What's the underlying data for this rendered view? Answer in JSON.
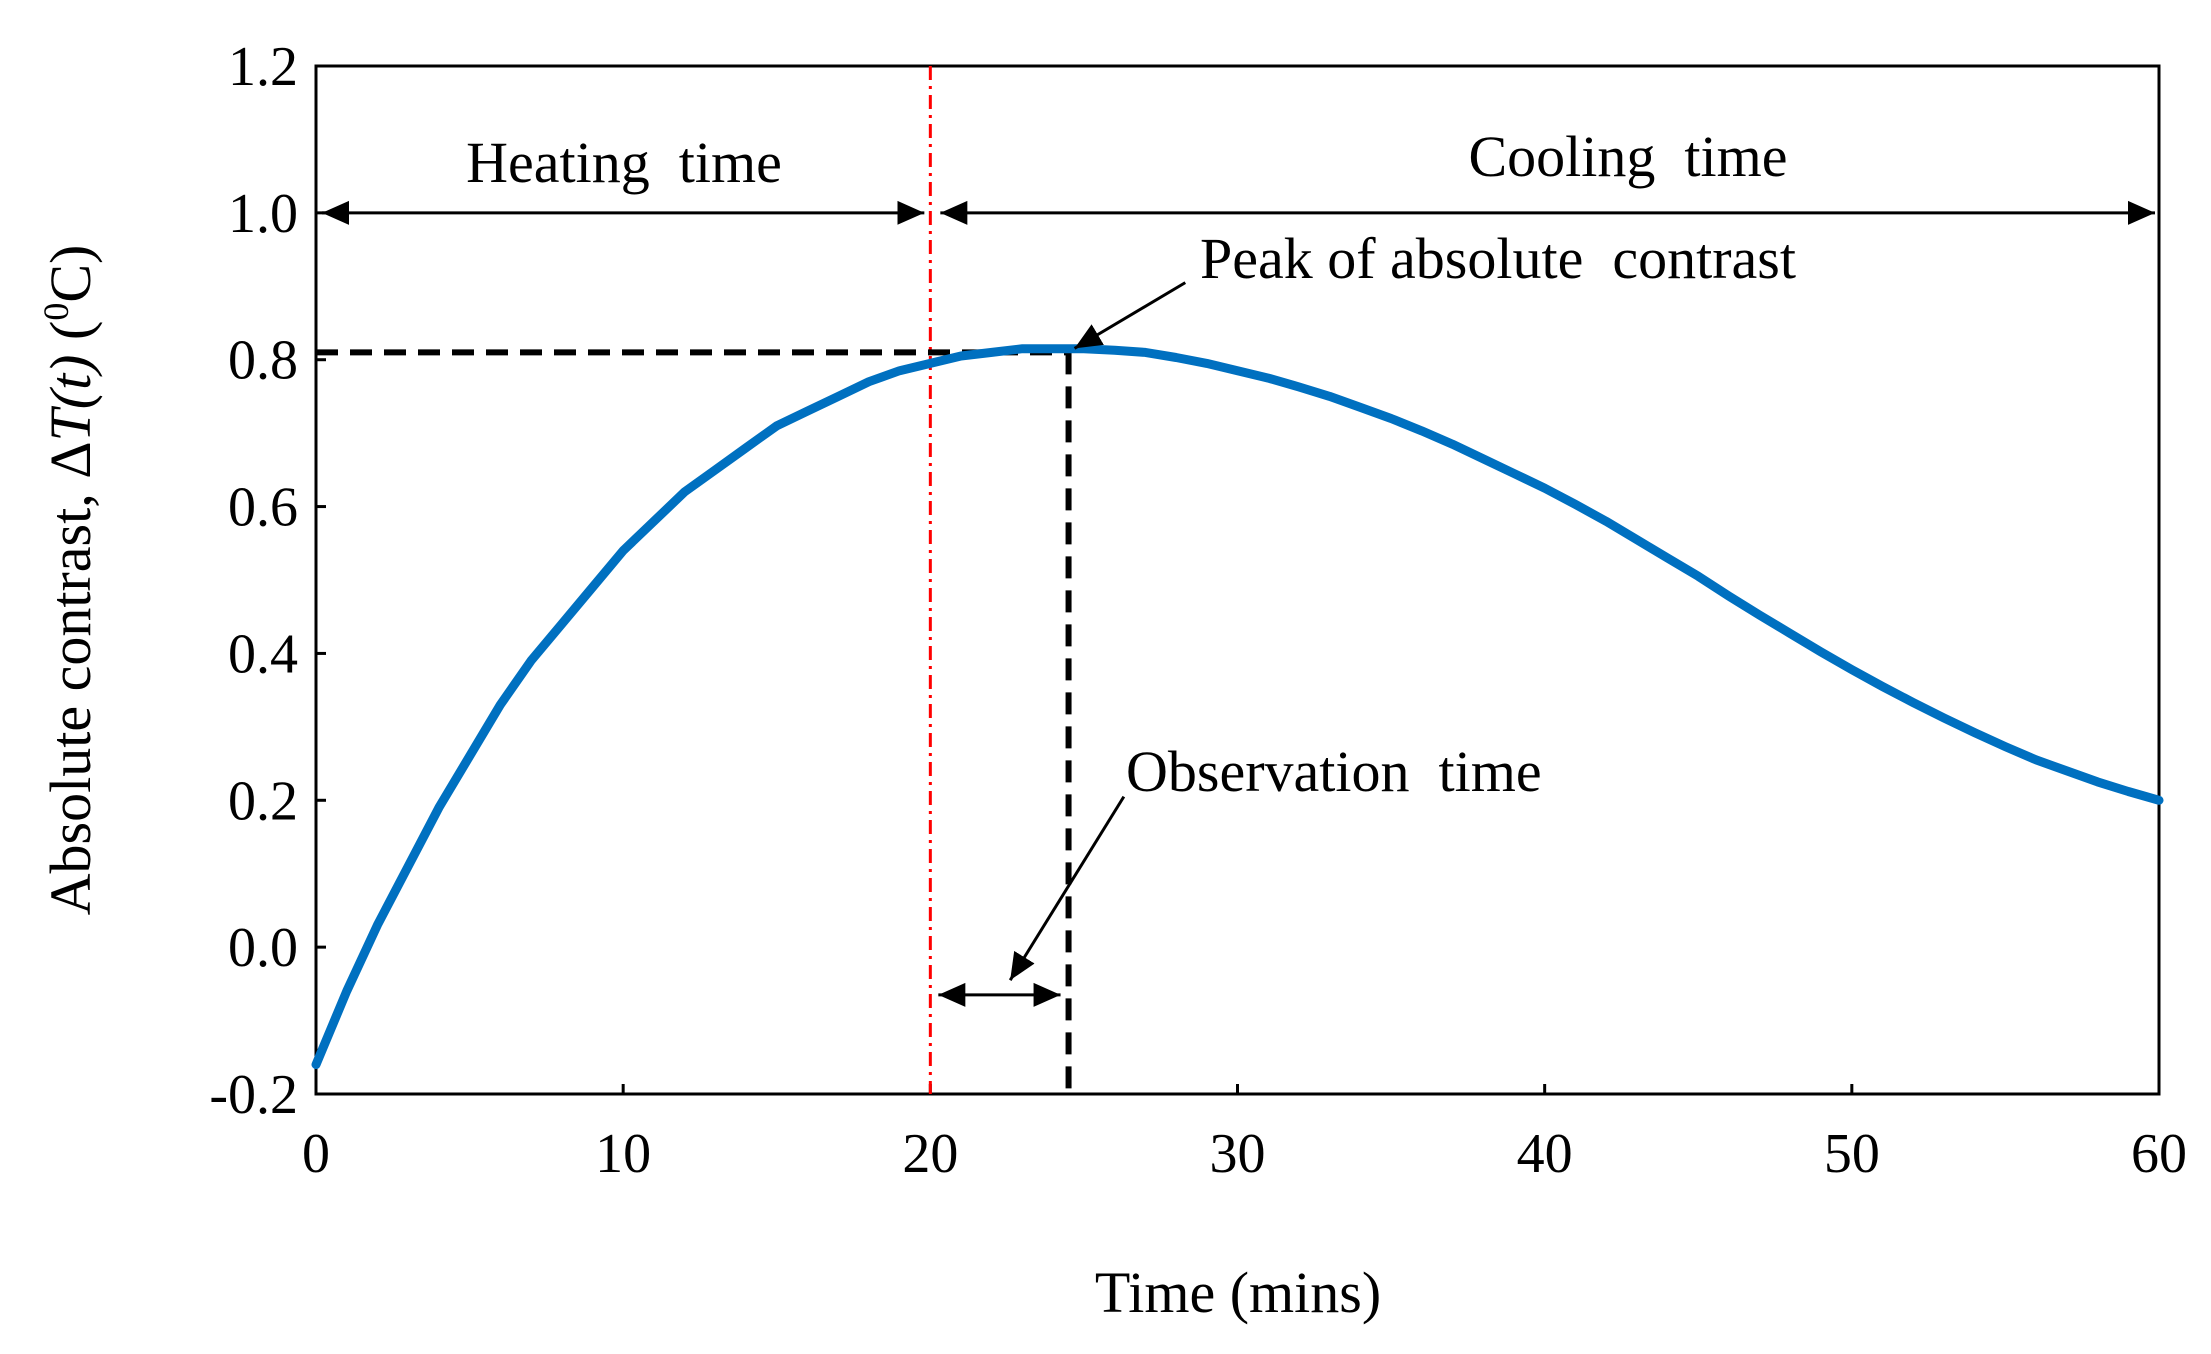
{
  "chart_data": {
    "type": "line",
    "title": "",
    "xlabel": "Time (mins)",
    "ylabel_parts": {
      "prefix": "Absolute contrast, Δ",
      "var": "T(t)",
      "open": " (",
      "sup": "0",
      "unit": "C)"
    },
    "xlim": [
      0,
      60
    ],
    "ylim": [
      -0.2,
      1.2
    ],
    "xticks": [
      0,
      10,
      20,
      30,
      40,
      50,
      60
    ],
    "xtick_labels": [
      "0",
      "10",
      "20",
      "30",
      "40",
      "50",
      "60"
    ],
    "yticks": [
      -0.2,
      0.0,
      0.2,
      0.4,
      0.6,
      0.8,
      1.0,
      1.2
    ],
    "ytick_labels": [
      "-0.2",
      "0.0",
      "0.2",
      "0.4",
      "0.6",
      "0.8",
      "1.0",
      "1.2"
    ],
    "grid": false,
    "series": [
      {
        "name": "Absolute contrast",
        "color": "#0070c0",
        "x": [
          0,
          1,
          2,
          3,
          4,
          5,
          6,
          7,
          8,
          9,
          10,
          11,
          12,
          13,
          14,
          15,
          16,
          17,
          18,
          19,
          20,
          21,
          22,
          23,
          24,
          25,
          26,
          27,
          28,
          29,
          30,
          31,
          32,
          33,
          34,
          35,
          36,
          37,
          38,
          39,
          40,
          41,
          42,
          43,
          44,
          45,
          46,
          47,
          48,
          49,
          50,
          51,
          52,
          53,
          54,
          55,
          56,
          57,
          58,
          59,
          60
        ],
        "y": [
          -0.16,
          -0.06,
          0.03,
          0.11,
          0.19,
          0.26,
          0.33,
          0.39,
          0.44,
          0.49,
          0.54,
          0.58,
          0.62,
          0.65,
          0.68,
          0.71,
          0.73,
          0.75,
          0.77,
          0.785,
          0.795,
          0.805,
          0.81,
          0.815,
          0.815,
          0.815,
          0.813,
          0.81,
          0.803,
          0.795,
          0.785,
          0.775,
          0.763,
          0.75,
          0.735,
          0.72,
          0.703,
          0.685,
          0.665,
          0.645,
          0.625,
          0.603,
          0.58,
          0.555,
          0.53,
          0.505,
          0.478,
          0.452,
          0.427,
          0.402,
          0.378,
          0.355,
          0.333,
          0.312,
          0.292,
          0.273,
          0.255,
          0.24,
          0.225,
          0.212,
          0.2
        ]
      }
    ],
    "heating_end_x": 20,
    "peak": {
      "x": 24.5,
      "y": 0.81
    },
    "annotations": {
      "heating_time": "Heating  time",
      "cooling_time": "Cooling  time",
      "peak_label": "Peak of absolute  contrast",
      "observation_time": "Observation  time"
    },
    "colors": {
      "curve": "#0070c0",
      "heating_line": "#ff0000",
      "guides": "#000000"
    }
  }
}
